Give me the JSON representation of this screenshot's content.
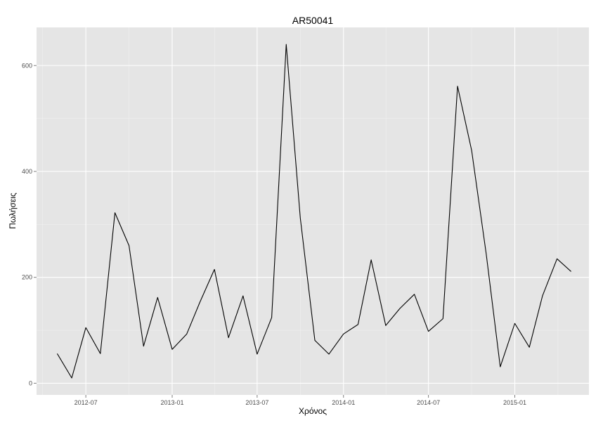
{
  "chart_data": {
    "type": "line",
    "title": "AR50041",
    "xlabel": "Χρόνος",
    "ylabel": "Πωλήσεις",
    "x_ticks": [
      "2012-07",
      "2013-01",
      "2013-07",
      "2014-01",
      "2014-07",
      "2015-01"
    ],
    "y_ticks": [
      0,
      200,
      400,
      600
    ],
    "xlim": [
      "2012-03-18",
      "2015-06-08"
    ],
    "ylim": [
      -22,
      672
    ],
    "grid": true,
    "legend": "none",
    "colors": {
      "panel": "#e5e5e5",
      "grid": "#ffffff",
      "line": "#000000"
    },
    "series": [
      {
        "x": [
          "2012-05-01",
          "2012-06-01",
          "2012-07-01",
          "2012-08-01",
          "2012-09-01",
          "2012-10-01",
          "2012-11-01",
          "2012-12-01",
          "2013-01-01",
          "2013-02-01",
          "2013-03-01",
          "2013-04-01",
          "2013-05-01",
          "2013-06-01",
          "2013-07-01",
          "2013-08-01",
          "2013-09-01",
          "2013-10-01",
          "2013-11-01",
          "2013-12-01",
          "2014-01-01",
          "2014-02-01",
          "2014-03-01",
          "2014-04-01",
          "2014-05-01",
          "2014-06-01",
          "2014-07-01",
          "2014-08-01",
          "2014-09-01",
          "2014-10-01",
          "2014-11-01",
          "2014-12-01",
          "2015-01-01",
          "2015-02-01",
          "2015-03-01",
          "2015-04-01",
          "2015-05-01"
        ],
        "values": [
          56,
          10,
          105,
          56,
          322,
          260,
          70,
          162,
          64,
          93,
          153,
          215,
          86,
          165,
          55,
          124,
          640,
          312,
          81,
          55,
          93,
          111,
          233,
          109,
          141,
          168,
          98,
          122,
          561,
          440,
          245,
          31,
          113,
          68,
          165,
          235,
          211
        ]
      }
    ]
  }
}
